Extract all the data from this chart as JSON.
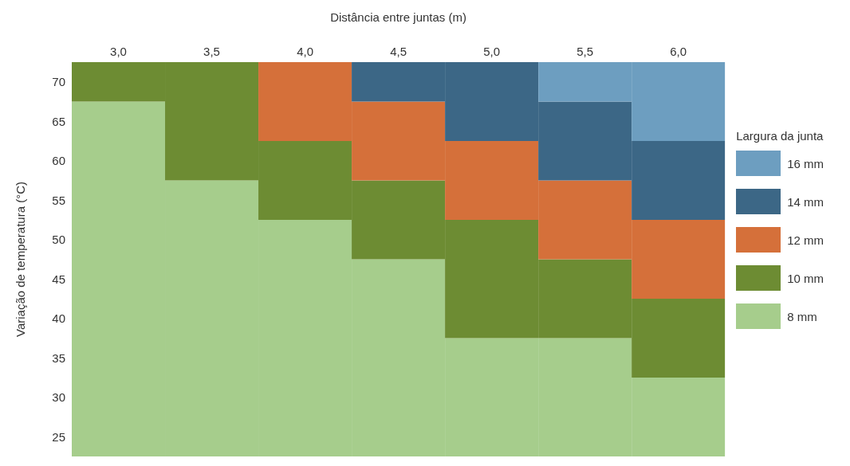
{
  "chart_data": {
    "type": "bar",
    "xlabel": "Distância entre juntas (m)",
    "ylabel": "Variação de temperatura (°C)",
    "legend_title": "Largura da junta",
    "legend": "right",
    "categories": [
      "3,0",
      "3,5",
      "4,0",
      "4,5",
      "5,0",
      "5,5",
      "6,0"
    ],
    "ylim": [
      22.5,
      72.5
    ],
    "yticks": [
      25,
      30,
      35,
      40,
      45,
      50,
      55,
      60,
      65,
      70
    ],
    "series": [
      {
        "name": "8 mm",
        "color": "#a6cd8c",
        "base": [
          22.5,
          22.5,
          22.5,
          22.5,
          22.5,
          22.5,
          22.5
        ],
        "values": [
          45,
          35,
          30,
          25,
          15,
          15,
          10
        ]
      },
      {
        "name": "10 mm",
        "color": "#6d8c33",
        "base": [
          67.5,
          57.5,
          52.5,
          47.5,
          37.5,
          37.5,
          32.5
        ],
        "values": [
          5,
          15,
          10,
          10,
          15,
          10,
          10
        ]
      },
      {
        "name": "12 mm",
        "color": "#d5703a",
        "base": [
          null,
          null,
          62.5,
          57.5,
          52.5,
          47.5,
          42.5
        ],
        "values": [
          null,
          null,
          10,
          10,
          10,
          10,
          10
        ]
      },
      {
        "name": "14 mm",
        "color": "#3c6786",
        "base": [
          null,
          null,
          null,
          67.5,
          62.5,
          57.5,
          52.5
        ],
        "values": [
          null,
          null,
          null,
          5,
          10,
          10,
          10
        ]
      },
      {
        "name": "16 mm",
        "color": "#6d9ec0",
        "base": [
          null,
          null,
          null,
          null,
          null,
          67.5,
          62.5
        ],
        "values": [
          null,
          null,
          null,
          null,
          null,
          5,
          10
        ]
      }
    ]
  }
}
